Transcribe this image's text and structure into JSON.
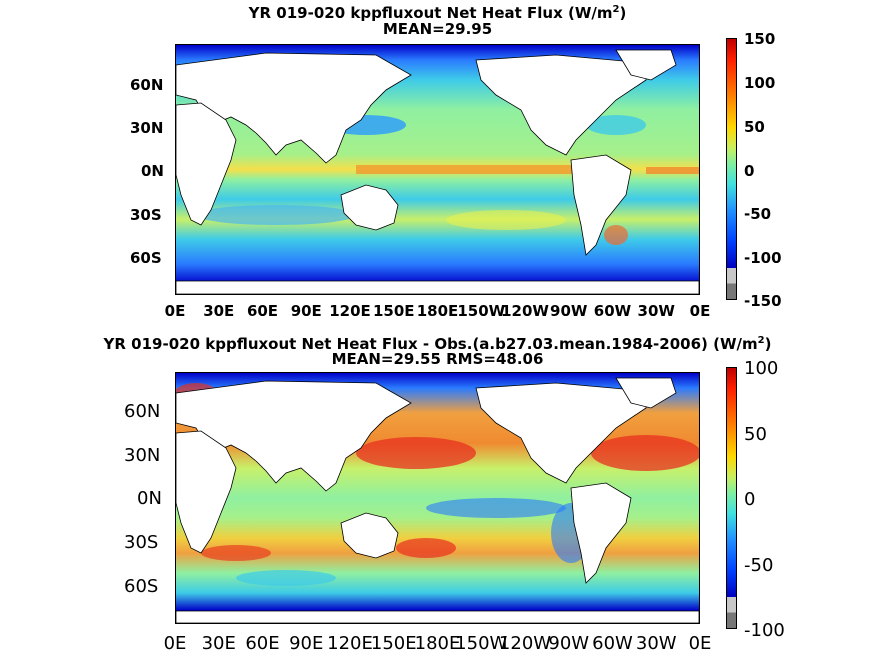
{
  "panels": [
    {
      "title_line1": "YR 019-020 kppfluxout  Net Heat Flux (W/m",
      "title_sup": "2",
      "title_line1_end": ")",
      "title_line2": "MEAN=29.95",
      "lat_ticks": [
        "60N",
        "30N",
        "0N",
        "30S",
        "60S"
      ],
      "lon_ticks": [
        "0E",
        "30E",
        "60E",
        "90E",
        "120E",
        "150E",
        "180E",
        "150W",
        "120W",
        "90W",
        "60W",
        "30W",
        "0E"
      ],
      "colorbar_ticks": [
        "150",
        "100",
        "50",
        "0",
        "-50",
        "-100",
        "-150"
      ],
      "colorbar_range": [
        -150,
        150
      ]
    },
    {
      "title_line1": "YR 019-020 kppfluxout  Net Heat Flux - Obs.(a.b27.03.mean.1984-2006) (W/m",
      "title_sup": "2",
      "title_line1_end": ")",
      "title_line2": "MEAN=29.55 RMS=48.06",
      "lat_ticks": [
        "60N",
        "30N",
        "0N",
        "30S",
        "60S"
      ],
      "lon_ticks": [
        "0E",
        "30E",
        "60E",
        "90E",
        "120E",
        "150E",
        "180E",
        "150W",
        "120W",
        "90W",
        "60W",
        "30W",
        "0E"
      ],
      "colorbar_ticks": [
        "100",
        "50",
        "0",
        "-50",
        "-100"
      ],
      "colorbar_range": [
        -100,
        100
      ]
    }
  ],
  "colors": {
    "ocean_neutral": "#8ff0a0",
    "land": "#ffffff",
    "out_of_range_low": "#777777",
    "out_of_range_mid": "#c8c8c8"
  }
}
